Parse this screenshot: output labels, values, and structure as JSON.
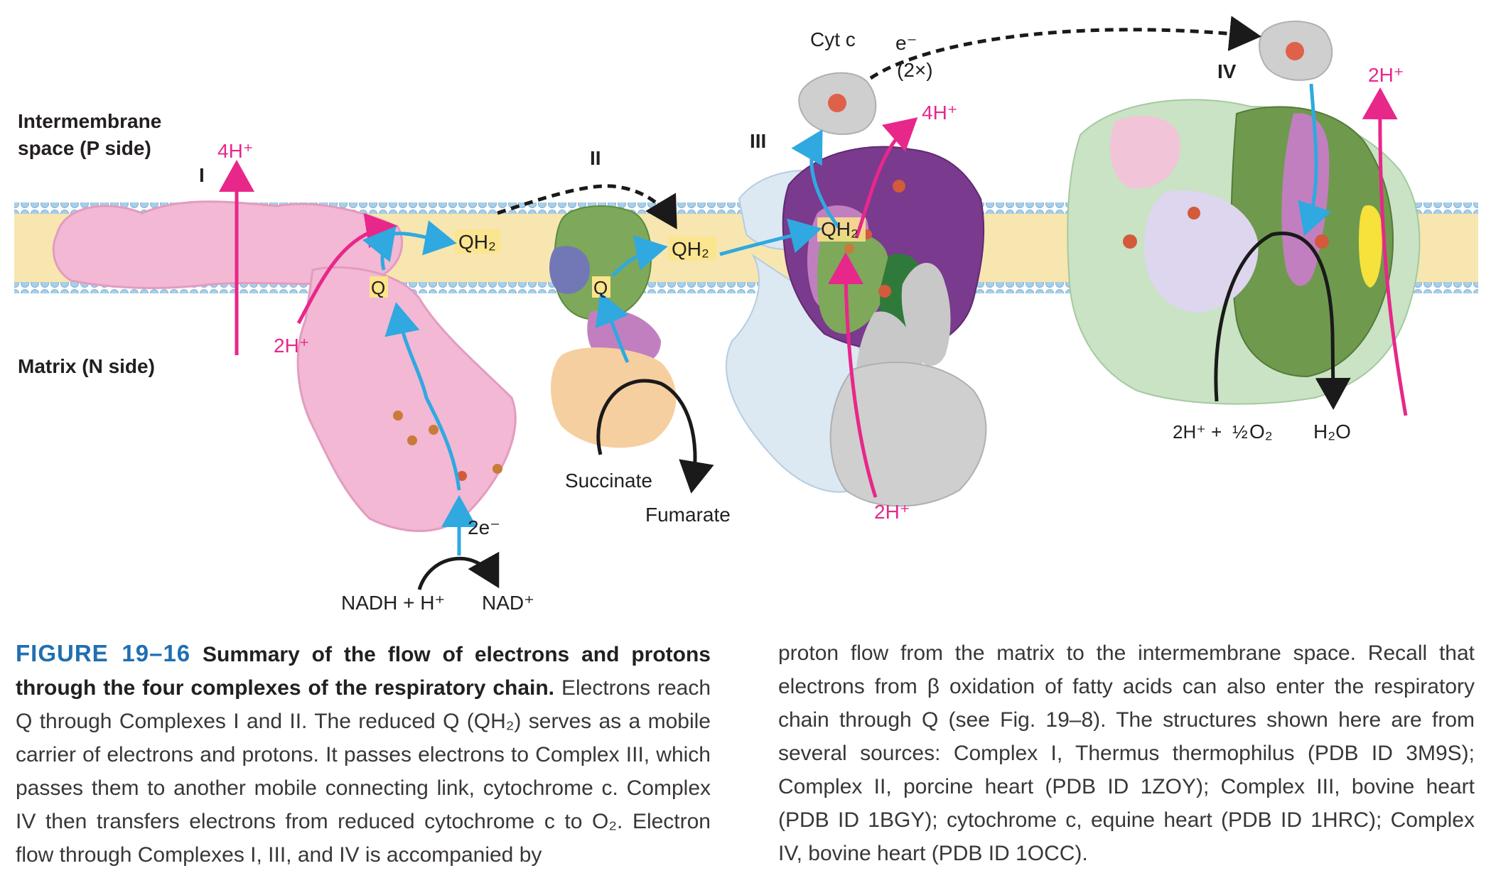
{
  "figure": {
    "labels": {
      "intermembrane_line1": "Intermembrane",
      "intermembrane_line2": "space (P side)",
      "matrix": "Matrix (N side)",
      "complex_I": "I",
      "complex_II": "II",
      "complex_III": "III",
      "complex_IV": "IV",
      "h_4_I": "4H⁺",
      "h_2_I": "2H⁺",
      "q_I": "Q",
      "qh2_I": "QH₂",
      "e2": "2e⁻",
      "nadh": "NADH + H⁺",
      "nad": "NAD⁺",
      "q_II": "Q",
      "qh2_II": "QH₂",
      "succinate": "Succinate",
      "fumarate": "Fumarate",
      "qh2_III": "QH₂",
      "cytc": "Cyt c",
      "e_minus": "e⁻",
      "two_x": "(2×)",
      "h_4_III": "4H⁺",
      "h_2_III": "2H⁺",
      "h_2_IV_top": "2H⁺",
      "h_2_IV_bottom": "2H⁺ +",
      "half": "½",
      "o2": "O₂",
      "h2o": "H₂O"
    },
    "colors": {
      "proton_arrow": "#e8278a",
      "electron_arrow": "#2fa9e0",
      "membrane": "#f7e6b0",
      "head_group": "#a9cfe8",
      "complex_I": "#f2b8d4",
      "complex_II_green": "#7ea85a",
      "complex_II_peach": "#f6cfa0",
      "complex_III_purple": "#7a3a8e",
      "complex_III_light": "#dce8f2",
      "complex_IV_green": "#6f9a4e",
      "cytc": "#cfcfcf",
      "q_box": "#fbe48a"
    }
  },
  "caption": {
    "fig_num": "FIGURE 19–16",
    "title": "Summary of the flow of electrons and protons through the four complexes of the respiratory chain.",
    "left_text": "Electrons reach Q through Complexes I and II. The reduced Q (QH₂) serves as a mobile carrier of electrons and protons. It passes electrons to Complex III, which passes them to another mobile connecting link, cytochrome c. Complex IV then transfers electrons from reduced cytochrome c to O₂. Electron flow through Complexes I, III, and IV is accompanied by",
    "right_text": "proton flow from the matrix to the intermembrane space. Recall that electrons from β oxidation of fatty acids can also enter the respiratory chain through Q (see Fig. 19–8). The structures shown here are from several sources: Complex I, Thermus thermophilus (PDB ID 3M9S); Complex II, porcine heart (PDB ID 1ZOY); Complex III, bovine heart (PDB ID 1BGY); cytochrome c, equine heart (PDB ID 1HRC); Complex IV, bovine heart (PDB ID 1OCC)."
  }
}
